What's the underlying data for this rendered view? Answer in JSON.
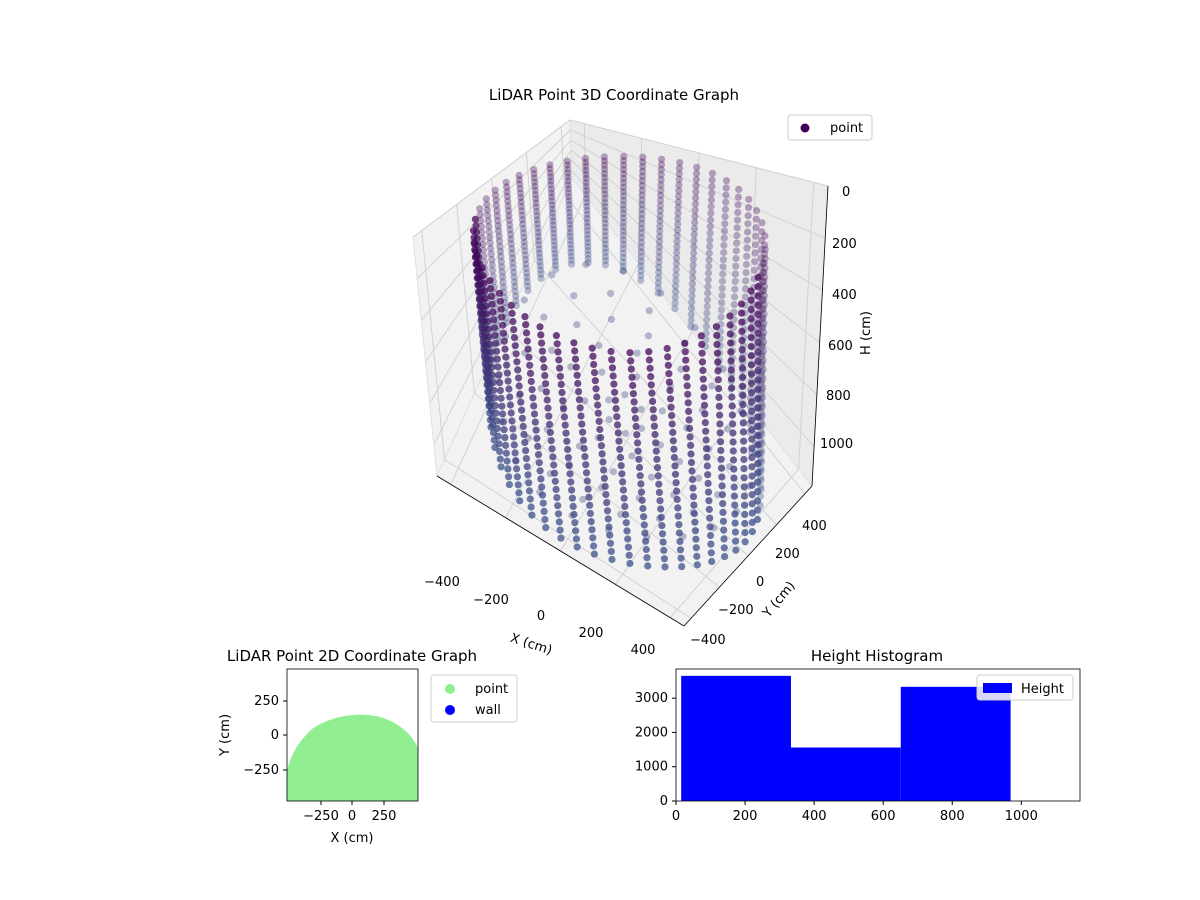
{
  "chart_data": [
    {
      "type": "scatter",
      "title": "LiDAR Point 3D Coordinate Graph",
      "xlabel": "X (cm)",
      "ylabel": "Y (cm)",
      "zlabel": "H (cm)",
      "x_ticks": [
        "−400",
        "−200",
        "0",
        "200",
        "400"
      ],
      "y_ticks": [
        "−400",
        "−200",
        "0",
        "200",
        "400"
      ],
      "z_ticks": [
        "0",
        "200",
        "400",
        "600",
        "800",
        "1000"
      ],
      "xlim": [
        -450,
        450
      ],
      "ylim": [
        -450,
        450
      ],
      "zlim": [
        0,
        1150
      ],
      "z_inverted": true,
      "legend": {
        "position": "top-right",
        "entries": [
          {
            "name": "point",
            "color": "#440154"
          }
        ]
      },
      "colormap": "viridis",
      "point_color_top": "#440154",
      "point_color_bottom": "#3b528b",
      "shape": "cylindrical wall of points, radius ≈ 450 cm, height 0–1100 cm"
    },
    {
      "type": "scatter",
      "title": "LiDAR Point 2D Coordinate Graph",
      "xlabel": "X (cm)",
      "ylabel": "Y (cm)",
      "x_ticks": [
        "−250",
        "0",
        "250"
      ],
      "y_ticks": [
        "250",
        "0",
        "−250"
      ],
      "xlim": [
        -500,
        500
      ],
      "ylim": [
        -500,
        500
      ],
      "legend": {
        "position": "outside-right",
        "entries": [
          {
            "name": "point",
            "color": "#90ee90"
          },
          {
            "name": "wall",
            "color": "#0000ff"
          }
        ]
      }
    },
    {
      "type": "bar",
      "title": "Height Histogram",
      "bins": [
        {
          "x0": 15,
          "x1": 333,
          "count": 3650
        },
        {
          "x0": 333,
          "x1": 651,
          "count": 1560
        },
        {
          "x0": 651,
          "x1": 969,
          "count": 3330
        }
      ],
      "x_ticks": [
        0,
        200,
        400,
        600,
        800,
        1000
      ],
      "y_ticks": [
        0,
        1000,
        2000,
        3000
      ],
      "xlim": [
        0,
        1170
      ],
      "ylim": [
        0,
        3850
      ],
      "bar_color": "#0000ff",
      "legend": {
        "position": "top-right",
        "entries": [
          {
            "name": "Height",
            "color": "#0000ff"
          }
        ]
      }
    }
  ]
}
